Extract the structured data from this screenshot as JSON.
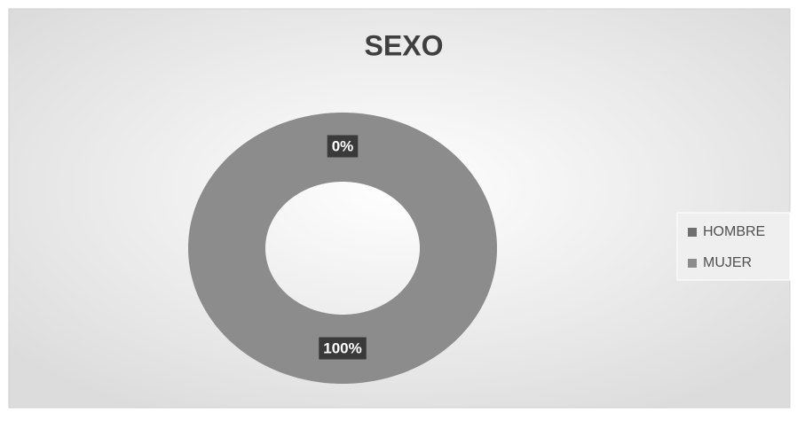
{
  "chart_data": {
    "type": "doughnut",
    "title": "SEXO",
    "categories": [
      "HOMBRE",
      "MUJER"
    ],
    "values": [
      0,
      100
    ],
    "value_labels": [
      "0%",
      "100%"
    ],
    "colors": [
      "#6f6f6f",
      "#8c8c8c"
    ],
    "legend": "right"
  }
}
